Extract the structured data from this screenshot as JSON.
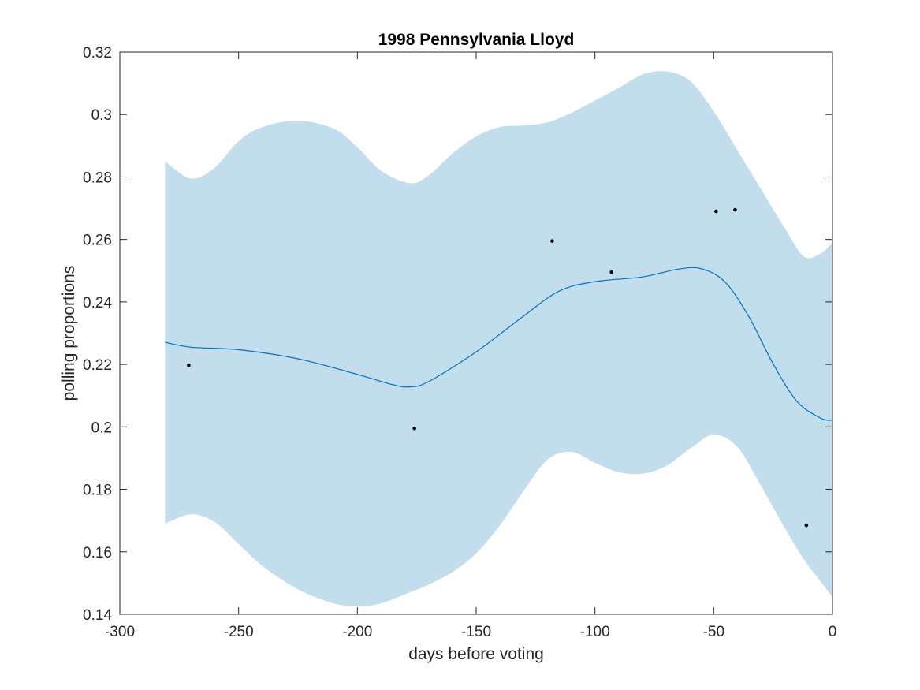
{
  "chart_data": {
    "type": "line",
    "title": "1998 Pennsylvania Lloyd",
    "xlabel": "days before voting",
    "ylabel": "polling proportions",
    "xlim": [
      -300,
      0
    ],
    "ylim": [
      0.14,
      0.32
    ],
    "xticks": [
      -300,
      -250,
      -200,
      -150,
      -100,
      -50,
      0
    ],
    "xtick_labels": [
      "-300",
      "-250",
      "-200",
      "-150",
      "-100",
      "-50",
      "0"
    ],
    "yticks": [
      0.14,
      0.16,
      0.18,
      0.2,
      0.22,
      0.24,
      0.26,
      0.28,
      0.3,
      0.32
    ],
    "ytick_labels": [
      "0.14",
      "0.16",
      "0.18",
      "0.2",
      "0.22",
      "0.24",
      "0.26",
      "0.28",
      "0.3",
      "0.32"
    ],
    "grid": false,
    "colors": {
      "band": "#c2deec",
      "line": "#0072bd",
      "points": "#000000",
      "axes": "#262626"
    },
    "trend": {
      "x": [
        -281,
        -270,
        -250,
        -225,
        -200,
        -185,
        -178,
        -170,
        -150,
        -130,
        -115,
        -100,
        -80,
        -65,
        -55,
        -45,
        -35,
        -25,
        -15,
        -5,
        0
      ],
      "y": [
        0.2271,
        0.2255,
        0.2247,
        0.2218,
        0.2168,
        0.2135,
        0.2128,
        0.2145,
        0.224,
        0.2355,
        0.2435,
        0.2465,
        0.248,
        0.2505,
        0.2506,
        0.2462,
        0.235,
        0.2202,
        0.2082,
        0.2028,
        0.2021
      ]
    },
    "band_upper": {
      "x": [
        -281,
        -270,
        -260,
        -250,
        -240,
        -225,
        -210,
        -200,
        -190,
        -178,
        -170,
        -160,
        -150,
        -140,
        -130,
        -120,
        -110,
        -100,
        -90,
        -80,
        -70,
        -60,
        -50,
        -40,
        -30,
        -20,
        -12,
        -5,
        0
      ],
      "y": [
        0.285,
        0.2795,
        0.283,
        0.2915,
        0.296,
        0.298,
        0.2955,
        0.2895,
        0.282,
        0.278,
        0.2805,
        0.2875,
        0.293,
        0.296,
        0.2965,
        0.2975,
        0.3005,
        0.3045,
        0.3085,
        0.3128,
        0.3138,
        0.3108,
        0.301,
        0.2885,
        0.276,
        0.2635,
        0.2545,
        0.2555,
        0.259
      ]
    },
    "band_lower": {
      "x": [
        -281,
        -270,
        -260,
        -250,
        -240,
        -225,
        -210,
        -200,
        -190,
        -178,
        -170,
        -160,
        -150,
        -140,
        -130,
        -120,
        -110,
        -100,
        -90,
        -80,
        -70,
        -60,
        -50,
        -40,
        -30,
        -20,
        -12,
        -5,
        0
      ],
      "y": [
        0.169,
        0.172,
        0.1695,
        0.1625,
        0.1555,
        0.148,
        0.1435,
        0.1425,
        0.1435,
        0.147,
        0.1495,
        0.1535,
        0.1595,
        0.1685,
        0.1795,
        0.1895,
        0.192,
        0.1885,
        0.1855,
        0.185,
        0.1875,
        0.193,
        0.1975,
        0.1935,
        0.181,
        0.1675,
        0.1575,
        0.1505,
        0.1455
      ]
    },
    "points": {
      "x": [
        -271,
        -176,
        -118,
        -93,
        -49,
        -41,
        -11
      ],
      "y": [
        0.2197,
        0.1995,
        0.2595,
        0.2495,
        0.269,
        0.2695,
        0.1685
      ]
    }
  }
}
